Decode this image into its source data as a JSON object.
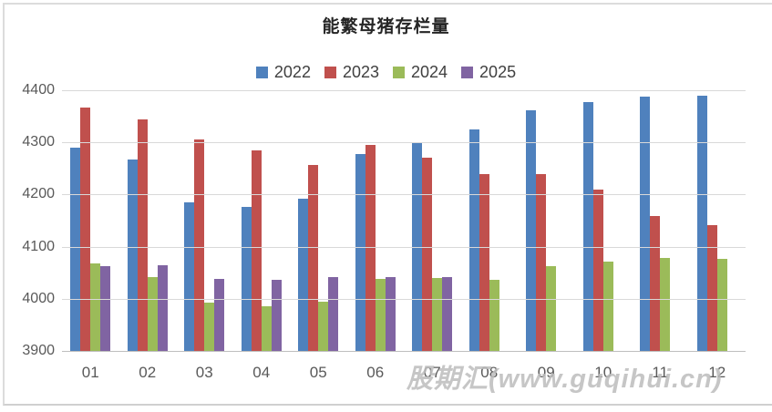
{
  "title": "能繁母猪存栏量",
  "watermark": "股期汇(www.guqihui.cn)",
  "colors": {
    "series_2022": "#4F81BD",
    "series_2023": "#C0504D",
    "series_2024": "#9BBB59",
    "series_2025": "#8064A2",
    "gridline": "#D9D9D9",
    "axis_line": "#BFBFBF",
    "tick_text": "#595959",
    "legend_text": "#404040",
    "title_text": "#262626",
    "watermark_text": "#BDBDBD"
  },
  "chart_data": {
    "type": "bar",
    "title": "能繁母猪存栏量",
    "categories": [
      "01",
      "02",
      "03",
      "04",
      "05",
      "06",
      "07",
      "08",
      "09",
      "10",
      "11",
      "12"
    ],
    "series": [
      {
        "name": "2022",
        "color": "#4F81BD",
        "values": [
          4290,
          4268,
          4185,
          4177,
          4192,
          4278,
          4298,
          4325,
          4361,
          4378,
          4388,
          4390
        ]
      },
      {
        "name": "2023",
        "color": "#C0504D",
        "values": [
          4367,
          4344,
          4305,
          4285,
          4257,
          4296,
          4271,
          4240,
          4240,
          4210,
          4158,
          4141
        ]
      },
      {
        "name": "2024",
        "color": "#9BBB59",
        "values": [
          4067,
          4042,
          3992,
          3985,
          3995,
          4038,
          4040,
          4036,
          4062,
          4072,
          4078,
          4076
        ]
      },
      {
        "name": "2025",
        "color": "#8064A2",
        "values": [
          4062,
          4064,
          4038,
          4037,
          4041,
          4042,
          4042,
          null,
          null,
          null,
          null,
          null
        ]
      }
    ],
    "xlabel": "",
    "ylabel": "",
    "ylim": [
      3900,
      4400
    ],
    "y_ticks": [
      3900,
      4000,
      4100,
      4200,
      4300,
      4400
    ],
    "grid": true,
    "legend_position": "top-center"
  }
}
